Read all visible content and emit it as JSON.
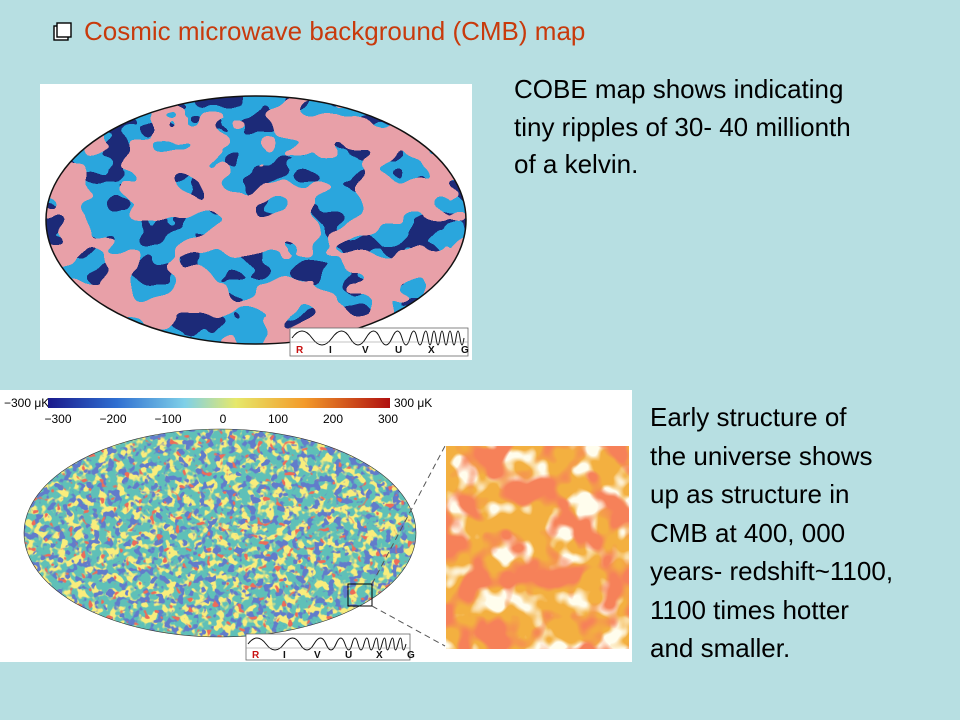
{
  "slide": {
    "title": "Cosmic microwave background (CMB) map",
    "accent_color": "#c83a0c",
    "paragraph1_lines": [
      "COBE map shows indicating",
      "tiny ripples of 30- 40 millionth",
      "of a kelvin."
    ],
    "paragraph2_lines": [
      "Early structure of",
      "the universe shows",
      "up as structure in",
      "CMB at 400, 000",
      "years- redshift~1100,",
      "1100 times hotter",
      "and smaller."
    ]
  },
  "cobe_figure": {
    "band_labels": [
      "R",
      "I",
      "V",
      "U",
      "X",
      "G"
    ]
  },
  "wmap_figure": {
    "scale_min_label": "−300 μK",
    "scale_max_label": "300 μK",
    "scale_ticks": [
      "−300",
      "−200",
      "−100",
      "0",
      "100",
      "200",
      "300"
    ],
    "band_labels": [
      "R",
      "I",
      "V",
      "U",
      "X",
      "G"
    ]
  }
}
